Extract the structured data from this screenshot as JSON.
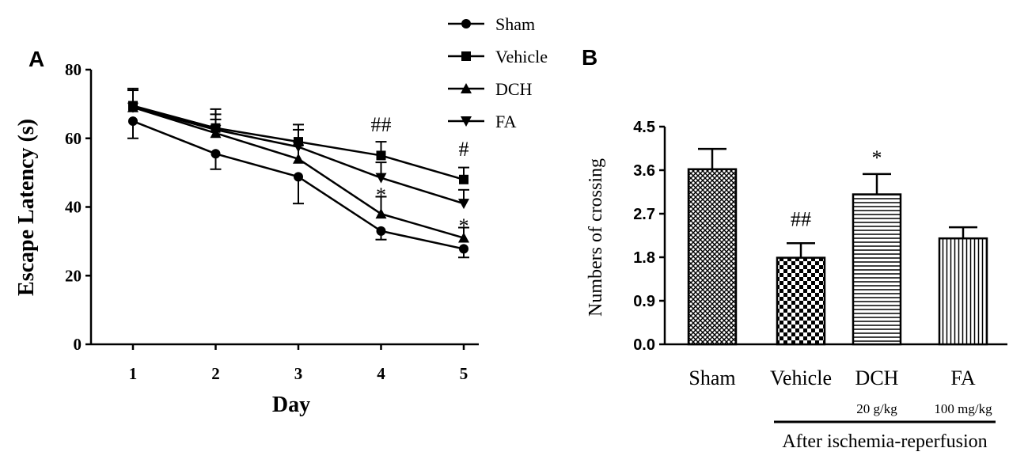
{
  "chart_data": [
    {
      "panel": "A",
      "type": "line",
      "xlabel": "Day",
      "ylabel": "Escape Latency (s)",
      "x": [
        1,
        2,
        3,
        4,
        5
      ],
      "xticks": [
        "1",
        "2",
        "3",
        "4",
        "5"
      ],
      "ylim": [
        0,
        80
      ],
      "yticks": [
        "0",
        "20",
        "40",
        "60",
        "80"
      ],
      "legend": {
        "placement": "top-right"
      },
      "series": [
        {
          "name": "Sham",
          "marker": "circle",
          "values": [
            65,
            55.5,
            48.8,
            33,
            27.8
          ],
          "errors": [
            5,
            4.5,
            7.8,
            2.5,
            2.5
          ]
        },
        {
          "name": "Vehicle",
          "marker": "square",
          "values": [
            69.5,
            63,
            59,
            55,
            48
          ],
          "errors": [
            5,
            5.5,
            5,
            4,
            3.5
          ]
        },
        {
          "name": "DCH",
          "marker": "triangle-up",
          "values": [
            69,
            61.5,
            54,
            38,
            31
          ],
          "errors": [
            5,
            4,
            4,
            5,
            3
          ]
        },
        {
          "name": "FA",
          "marker": "triangle-down",
          "values": [
            69,
            62.5,
            57.5,
            48.5,
            41
          ],
          "errors": [
            5,
            4.5,
            5,
            4.5,
            4
          ]
        }
      ],
      "annotations": [
        {
          "text": "##",
          "x": 4
        },
        {
          "text": "*",
          "x": 4
        },
        {
          "text": "#",
          "x": 5
        },
        {
          "text": "*",
          "x": 5
        }
      ]
    },
    {
      "panel": "B",
      "type": "bar",
      "ylabel": "Numbers of crossing",
      "categories": [
        "Sham",
        "Vehicle",
        "DCH",
        "FA"
      ],
      "doses": [
        "",
        "",
        "20 g/kg",
        "100 mg/kg"
      ],
      "values": [
        3.62,
        1.79,
        3.1,
        2.19
      ],
      "errors": [
        0.42,
        0.3,
        0.42,
        0.23
      ],
      "ylim": [
        0,
        4.5
      ],
      "yticks": [
        "0.0",
        "0.9",
        "1.8",
        "2.7",
        "3.6",
        "4.5"
      ],
      "annotations": [
        {
          "text": "##",
          "category": "Vehicle"
        },
        {
          "text": "*",
          "category": "DCH"
        }
      ],
      "group_label": "After ischemia-reperfusion"
    }
  ]
}
